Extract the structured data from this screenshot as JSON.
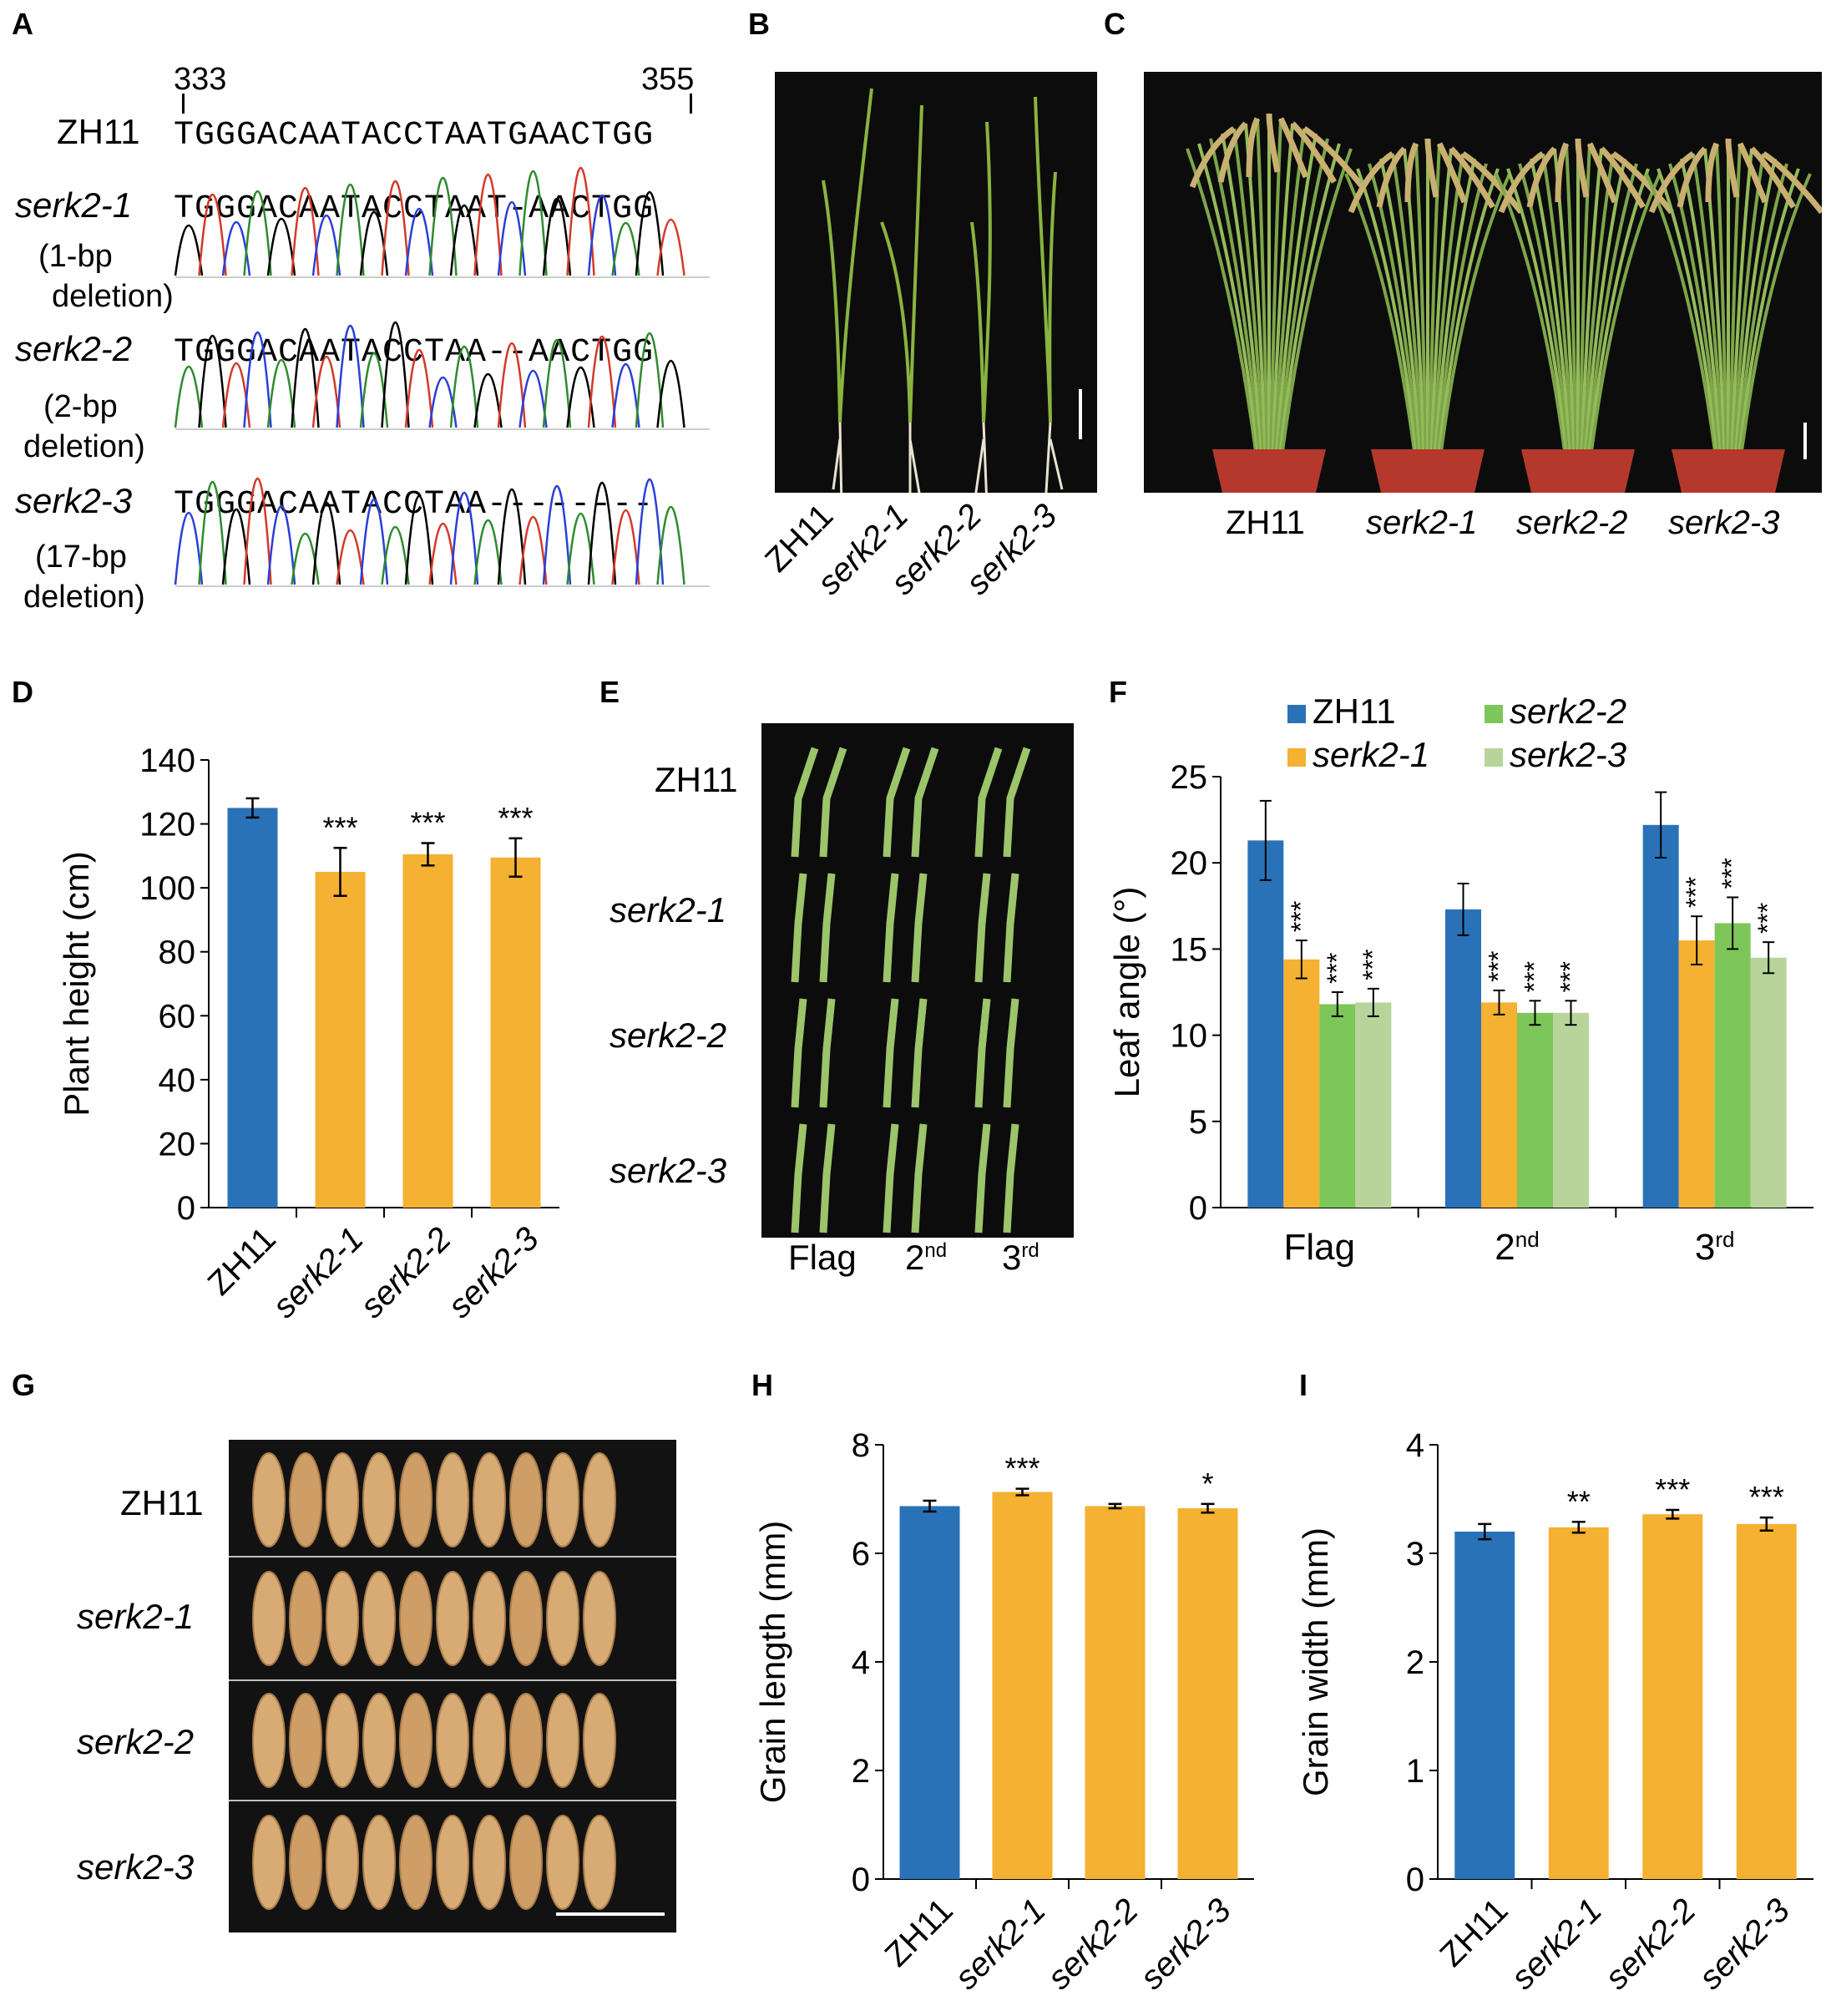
{
  "panels": {
    "A": "A",
    "B": "B",
    "C": "C",
    "D": "D",
    "E": "E",
    "F": "F",
    "G": "G",
    "H": "H",
    "I": "I"
  },
  "seq": {
    "pos_start": "333",
    "pos_end": "355",
    "rows": [
      {
        "name": "ZH11",
        "seq": "TGGGACAATACCTAATGAACTGG",
        "note1": "",
        "note2": ""
      },
      {
        "name": "serk2-1",
        "seq": "TGGGACAATACCTAAT-AACTGG",
        "note1": "(1-bp",
        "note2": "deletion)"
      },
      {
        "name": "serk2-2",
        "seq": "TGGGACAATACCTAA--AACTGG",
        "note1": "(2-bp",
        "note2": "deletion)"
      },
      {
        "name": "serk2-3",
        "seq": "TGGGACAATACCTAA--------",
        "note1": "(17-bp",
        "note2": "deletion)"
      }
    ],
    "trace_colors": [
      "#000000",
      "#2e8b2e",
      "#2b3fd6",
      "#d23a2a"
    ]
  },
  "genotypes": [
    "ZH11",
    "serk2-1",
    "serk2-2",
    "serk2-3"
  ],
  "leaf_labels": [
    "Flag",
    "2",
    "nd",
    "3",
    "rd"
  ],
  "colors": {
    "zh11": "#2a72b8",
    "serk2_1": "#f4b132",
    "serk2_2": "#7dc65a",
    "serk2_3": "#b8d49a",
    "photo_bg": "#0c0c0c",
    "leaf": "#9cc46a",
    "grain": "#d8ab74"
  },
  "chart_data": [
    {
      "id": "D",
      "type": "bar",
      "categories": [
        "ZH11",
        "serk2-1",
        "serk2-2",
        "serk2-3"
      ],
      "values": [
        125,
        105,
        110.5,
        109.5
      ],
      "errors": [
        3,
        7.5,
        3.5,
        6
      ],
      "significance": [
        "",
        "***",
        "***",
        "***"
      ],
      "ylabel": "Plant height (cm)",
      "ylim": [
        0,
        140
      ],
      "yticks": [
        0,
        20,
        40,
        60,
        80,
        100,
        120,
        140
      ]
    },
    {
      "id": "F",
      "type": "bar",
      "categories": [
        "Flag",
        "2nd",
        "3rd"
      ],
      "series": [
        {
          "name": "ZH11",
          "values": [
            21.3,
            17.3,
            22.2
          ],
          "errors": [
            2.3,
            1.5,
            1.9
          ],
          "significance": [
            "",
            "",
            ""
          ]
        },
        {
          "name": "serk2-1",
          "values": [
            14.4,
            11.9,
            15.5
          ],
          "errors": [
            1.1,
            0.7,
            1.4
          ],
          "significance": [
            "***",
            "***",
            "***"
          ]
        },
        {
          "name": "serk2-2",
          "values": [
            11.8,
            11.3,
            16.5
          ],
          "errors": [
            0.7,
            0.7,
            1.5
          ],
          "significance": [
            "***",
            "***",
            "***"
          ]
        },
        {
          "name": "serk2-3",
          "values": [
            11.9,
            11.3,
            14.5
          ],
          "errors": [
            0.8,
            0.7,
            0.9
          ],
          "significance": [
            "***",
            "***",
            "***"
          ]
        }
      ],
      "ylabel": "Leaf angle (°)",
      "ylim": [
        0,
        25
      ],
      "yticks": [
        0,
        5,
        10,
        15,
        20,
        25
      ],
      "legend": "top"
    },
    {
      "id": "H",
      "type": "bar",
      "categories": [
        "ZH11",
        "serk2-1",
        "serk2-2",
        "serk2-3"
      ],
      "values": [
        6.87,
        7.13,
        6.87,
        6.83
      ],
      "errors": [
        0.1,
        0.06,
        0.04,
        0.08
      ],
      "significance": [
        "",
        "***",
        "",
        "*"
      ],
      "ylabel": "Grain length (mm)",
      "ylim": [
        0,
        8
      ],
      "yticks": [
        0,
        2,
        4,
        6,
        8
      ]
    },
    {
      "id": "I",
      "type": "bar",
      "categories": [
        "ZH11",
        "serk2-1",
        "serk2-2",
        "serk2-3"
      ],
      "values": [
        3.2,
        3.24,
        3.36,
        3.27
      ],
      "errors": [
        0.07,
        0.05,
        0.04,
        0.06
      ],
      "significance": [
        "",
        "**",
        "***",
        "***"
      ],
      "ylabel": "Grain width (mm)",
      "ylim": [
        0,
        4
      ],
      "yticks": [
        0,
        1,
        2,
        3,
        4
      ]
    }
  ]
}
